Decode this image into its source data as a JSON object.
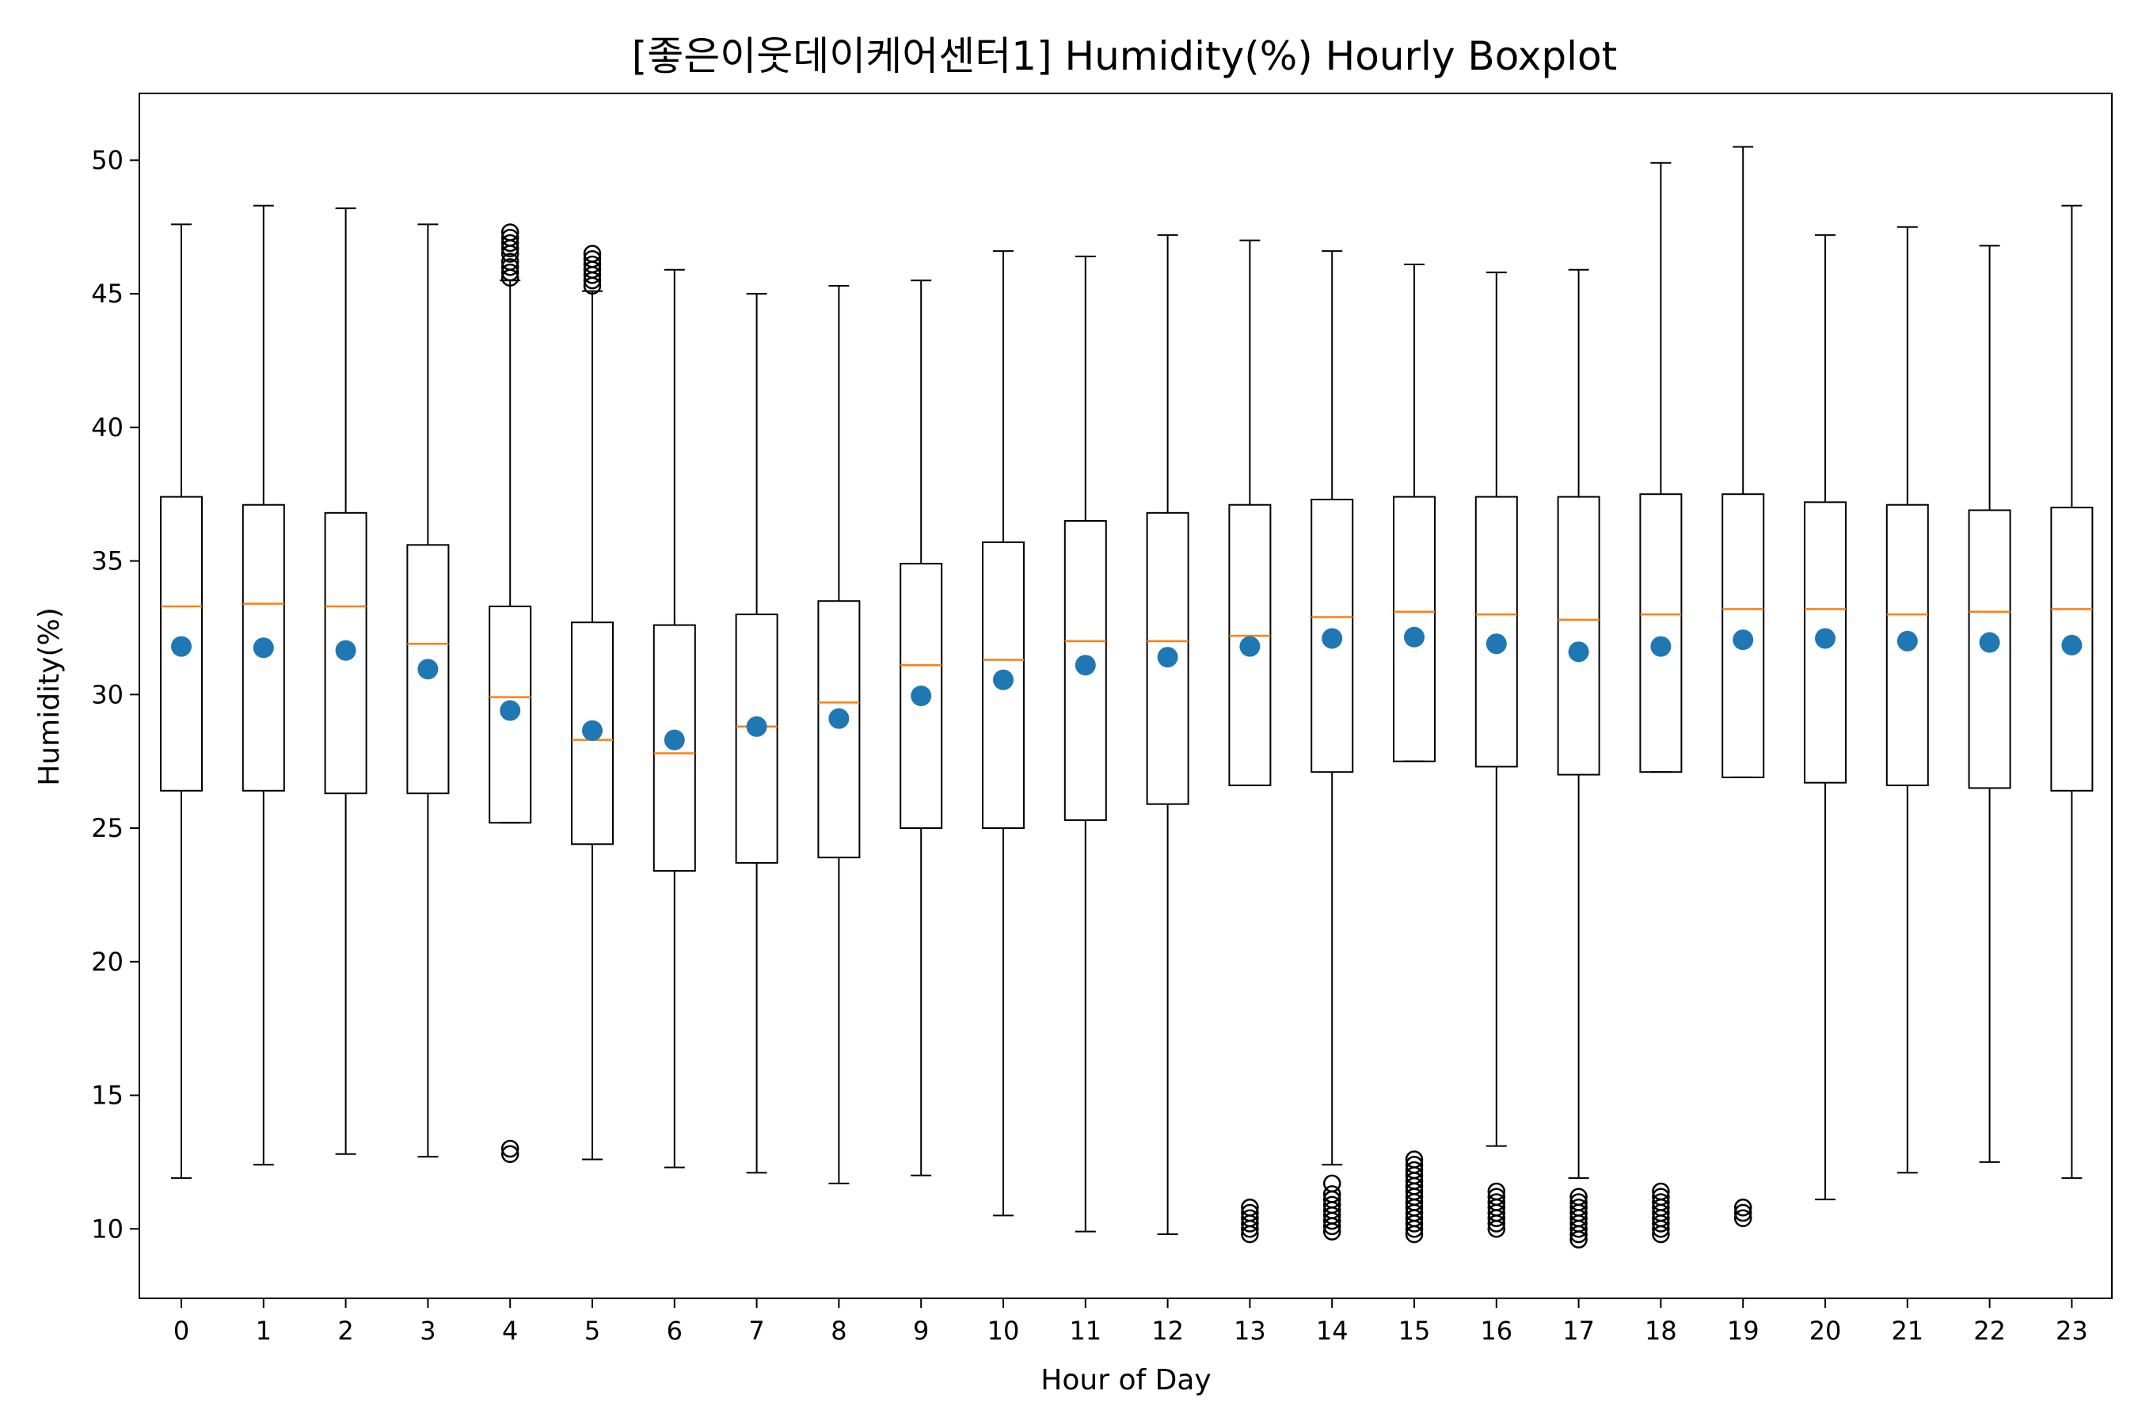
{
  "chart_data": {
    "type": "box",
    "title": "[좋은이웃데이케어센터1] Humidity(%) Hourly Boxplot",
    "xlabel": "Hour of Day",
    "ylabel": "Humidity(%)",
    "ylim": [
      7.4,
      52.5
    ],
    "yticks": [
      10,
      15,
      20,
      25,
      30,
      35,
      40,
      45,
      50
    ],
    "categories": [
      "0",
      "1",
      "2",
      "3",
      "4",
      "5",
      "6",
      "7",
      "8",
      "9",
      "10",
      "11",
      "12",
      "13",
      "14",
      "15",
      "16",
      "17",
      "18",
      "19",
      "20",
      "21",
      "22",
      "23"
    ],
    "grid": false,
    "legend": "none",
    "colors": {
      "box": "#000000",
      "median": "#ff7f0e",
      "mean": "#1f77b4"
    },
    "boxes": [
      {
        "hour": "0",
        "whisker_low": 11.9,
        "q1": 26.4,
        "median": 33.3,
        "q3": 37.4,
        "whisker_high": 47.6,
        "mean": 31.8,
        "outliers": []
      },
      {
        "hour": "1",
        "whisker_low": 12.4,
        "q1": 26.4,
        "median": 33.4,
        "q3": 37.1,
        "whisker_high": 48.3,
        "mean": 31.75,
        "outliers": []
      },
      {
        "hour": "2",
        "whisker_low": 12.8,
        "q1": 26.3,
        "median": 33.3,
        "q3": 36.8,
        "whisker_high": 48.2,
        "mean": 31.65,
        "outliers": []
      },
      {
        "hour": "3",
        "whisker_low": 12.7,
        "q1": 26.3,
        "median": 31.9,
        "q3": 35.6,
        "whisker_high": 47.6,
        "mean": 30.95,
        "outliers": []
      },
      {
        "hour": "4",
        "whisker_low": 25.2,
        "q1": 25.2,
        "median": 29.9,
        "q3": 33.3,
        "whisker_high": 45.5,
        "mean": 29.4,
        "outliers": [
          45.6,
          45.8,
          46.0,
          46.2,
          46.5,
          46.7,
          46.9,
          47.1,
          47.3,
          12.8,
          13.0
        ]
      },
      {
        "hour": "5",
        "whisker_low": 12.6,
        "q1": 24.4,
        "median": 28.3,
        "q3": 32.7,
        "whisker_high": 45.1,
        "mean": 28.65,
        "outliers": [
          45.3,
          45.5,
          45.7,
          45.9,
          46.1,
          46.3,
          46.5
        ]
      },
      {
        "hour": "6",
        "whisker_low": 12.3,
        "q1": 23.4,
        "median": 27.8,
        "q3": 32.6,
        "whisker_high": 45.9,
        "mean": 28.3,
        "outliers": []
      },
      {
        "hour": "7",
        "whisker_low": 12.1,
        "q1": 23.7,
        "median": 28.8,
        "q3": 33.0,
        "whisker_high": 45.0,
        "mean": 28.8,
        "outliers": []
      },
      {
        "hour": "8",
        "whisker_low": 11.7,
        "q1": 23.9,
        "median": 29.7,
        "q3": 33.5,
        "whisker_high": 45.3,
        "mean": 29.1,
        "outliers": []
      },
      {
        "hour": "9",
        "whisker_low": 12.0,
        "q1": 25.0,
        "median": 31.1,
        "q3": 34.9,
        "whisker_high": 45.5,
        "mean": 29.95,
        "outliers": []
      },
      {
        "hour": "10",
        "whisker_low": 10.5,
        "q1": 25.0,
        "median": 31.3,
        "q3": 35.7,
        "whisker_high": 46.6,
        "mean": 30.55,
        "outliers": []
      },
      {
        "hour": "11",
        "whisker_low": 9.9,
        "q1": 25.3,
        "median": 32.0,
        "q3": 36.5,
        "whisker_high": 46.4,
        "mean": 31.1,
        "outliers": []
      },
      {
        "hour": "12",
        "whisker_low": 9.8,
        "q1": 25.9,
        "median": 32.0,
        "q3": 36.8,
        "whisker_high": 47.2,
        "mean": 31.4,
        "outliers": []
      },
      {
        "hour": "13",
        "whisker_low": 26.6,
        "q1": 26.6,
        "median": 32.2,
        "q3": 37.1,
        "whisker_high": 47.0,
        "mean": 31.8,
        "outliers": [
          9.8,
          10.0,
          10.2,
          10.4,
          10.6,
          10.8
        ]
      },
      {
        "hour": "14",
        "whisker_low": 12.4,
        "q1": 27.1,
        "median": 32.9,
        "q3": 37.3,
        "whisker_high": 46.6,
        "mean": 32.1,
        "outliers": [
          9.9,
          10.1,
          10.3,
          10.5,
          10.7,
          10.9,
          11.1,
          11.3,
          11.7
        ]
      },
      {
        "hour": "15",
        "whisker_low": 27.5,
        "q1": 27.5,
        "median": 33.1,
        "q3": 37.4,
        "whisker_high": 46.1,
        "mean": 32.15,
        "outliers": [
          9.8,
          10.0,
          10.2,
          10.4,
          10.6,
          10.8,
          11.0,
          11.2,
          11.4,
          11.6,
          11.8,
          12.0,
          12.2,
          12.4,
          12.6
        ]
      },
      {
        "hour": "16",
        "whisker_low": 13.1,
        "q1": 27.3,
        "median": 33.0,
        "q3": 37.4,
        "whisker_high": 45.8,
        "mean": 31.9,
        "outliers": [
          10.0,
          10.2,
          10.4,
          10.6,
          10.8,
          11.0,
          11.2,
          11.4
        ]
      },
      {
        "hour": "17",
        "whisker_low": 11.9,
        "q1": 27.0,
        "median": 32.8,
        "q3": 37.4,
        "whisker_high": 45.9,
        "mean": 31.6,
        "outliers": [
          9.6,
          9.8,
          10.0,
          10.2,
          10.4,
          10.6,
          10.8,
          11.0,
          11.2
        ]
      },
      {
        "hour": "18",
        "whisker_low": 27.1,
        "q1": 27.1,
        "median": 33.0,
        "q3": 37.5,
        "whisker_high": 49.9,
        "mean": 31.8,
        "outliers": [
          9.8,
          10.0,
          10.2,
          10.4,
          10.6,
          10.8,
          11.0,
          11.2,
          11.4
        ]
      },
      {
        "hour": "19",
        "whisker_low": 26.9,
        "q1": 26.9,
        "median": 33.2,
        "q3": 37.5,
        "whisker_high": 50.5,
        "mean": 32.05,
        "outliers": [
          10.4,
          10.6,
          10.8
        ]
      },
      {
        "hour": "20",
        "whisker_low": 11.1,
        "q1": 26.7,
        "median": 33.2,
        "q3": 37.2,
        "whisker_high": 47.2,
        "mean": 32.1,
        "outliers": []
      },
      {
        "hour": "21",
        "whisker_low": 12.1,
        "q1": 26.6,
        "median": 33.0,
        "q3": 37.1,
        "whisker_high": 47.5,
        "mean": 32.0,
        "outliers": []
      },
      {
        "hour": "22",
        "whisker_low": 12.5,
        "q1": 26.5,
        "median": 33.1,
        "q3": 36.9,
        "whisker_high": 46.8,
        "mean": 31.95,
        "outliers": []
      },
      {
        "hour": "23",
        "whisker_low": 11.9,
        "q1": 26.4,
        "median": 33.2,
        "q3": 37.0,
        "whisker_high": 48.3,
        "mean": 31.85,
        "outliers": []
      }
    ]
  }
}
